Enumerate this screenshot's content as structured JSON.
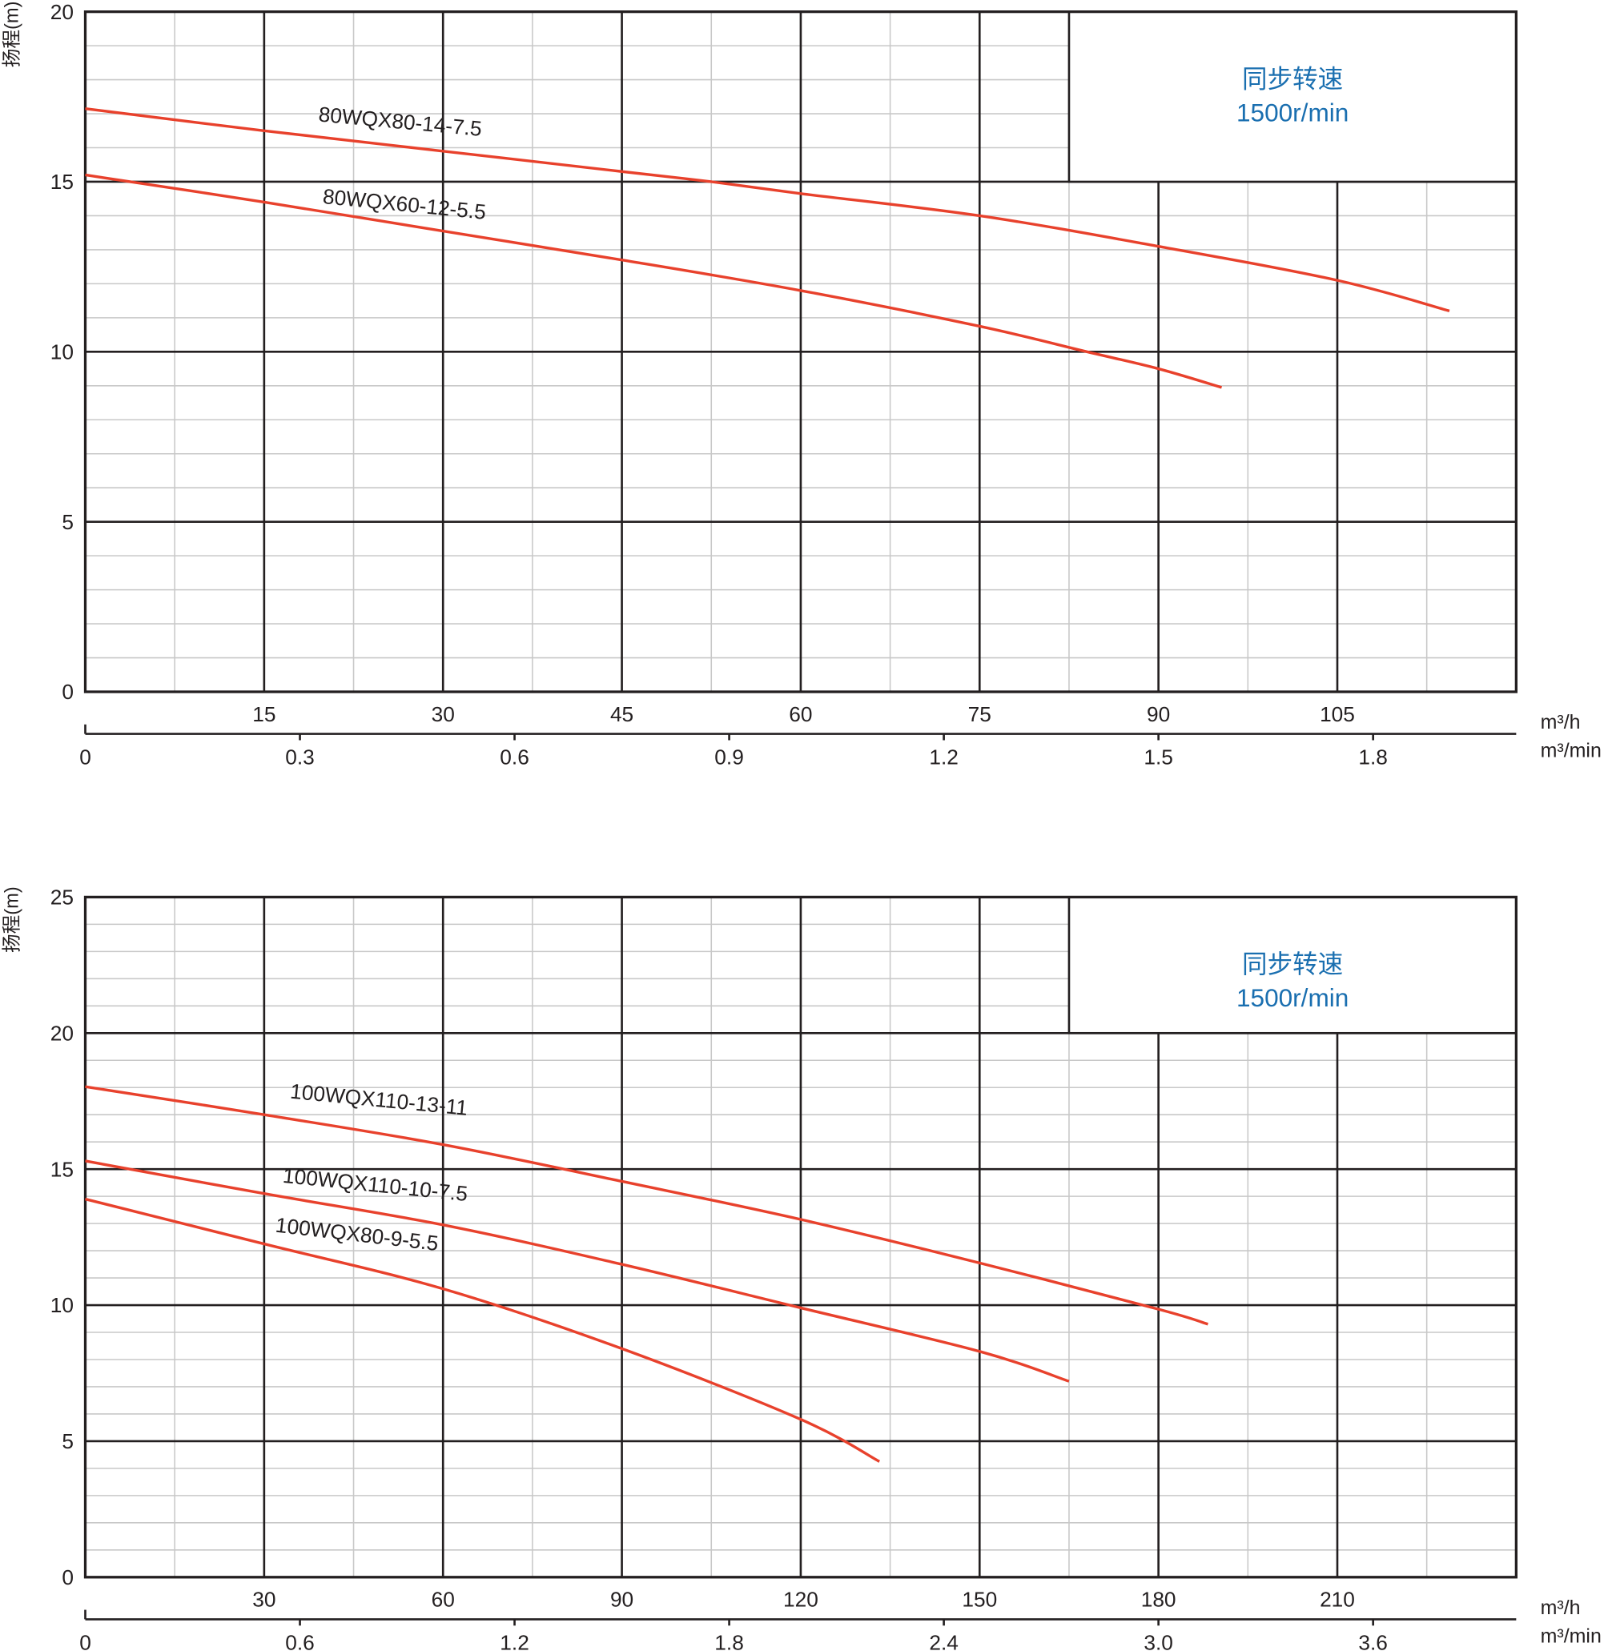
{
  "chart_data": [
    {
      "type": "line",
      "ylabel": "扬程(m)",
      "ylim": [
        0,
        20
      ],
      "yticks": [
        0,
        5,
        10,
        15,
        20
      ],
      "xlim": [
        0,
        120
      ],
      "xticks": [
        15,
        30,
        45,
        60,
        75,
        90,
        105
      ],
      "xlabel": "m³/h",
      "x2label": "m³/min",
      "x2ticks": [
        "0",
        "0.3",
        "0.6",
        "0.9",
        "1.2",
        "1.5",
        "1.8"
      ],
      "x2step_m3h": 18,
      "grid": true,
      "legend_box": {
        "line1": "同步转速",
        "line2": "1500r/min",
        "placement": "top-right"
      },
      "series": [
        {
          "name": "80WQX80-14-7.5",
          "x": [
            0,
            15,
            30,
            45,
            52.5,
            60,
            75,
            90,
            105,
            114.4
          ],
          "y": [
            17.15,
            16.5,
            15.9,
            15.3,
            15.0,
            14.65,
            14.0,
            13.1,
            12.1,
            11.2
          ]
        },
        {
          "name": "80WQX60-12-5.5",
          "x": [
            0,
            15,
            30,
            45,
            60,
            75,
            84,
            90,
            95.3
          ],
          "y": [
            15.2,
            14.4,
            13.55,
            12.7,
            11.8,
            10.75,
            10.0,
            9.5,
            8.95
          ]
        }
      ]
    },
    {
      "type": "line",
      "ylabel": "扬程(m)",
      "ylim": [
        0,
        25
      ],
      "yticks": [
        0,
        5,
        10,
        15,
        20,
        25
      ],
      "xlim": [
        0,
        240
      ],
      "xticks": [
        30,
        60,
        90,
        120,
        150,
        180,
        210
      ],
      "xlabel": "m³/h",
      "x2label": "m³/min",
      "x2ticks": [
        "0",
        "0.6",
        "1.2",
        "1.8",
        "2.4",
        "3.0",
        "3.6"
      ],
      "x2step_m3h": 36,
      "grid": true,
      "legend_box": {
        "line1": "同步转速",
        "line2": "1500r/min",
        "placement": "top-right"
      },
      "series": [
        {
          "name": "100WQX110-13-11",
          "x": [
            0,
            30,
            60,
            90,
            120,
            150,
            180,
            188.3
          ],
          "y": [
            18.03,
            17.0,
            15.9,
            14.55,
            13.15,
            11.55,
            9.85,
            9.3
          ]
        },
        {
          "name": "100WQX110-10-7.5",
          "x": [
            0,
            30,
            60,
            90,
            120,
            150,
            165
          ],
          "y": [
            15.3,
            14.1,
            12.95,
            11.5,
            9.9,
            8.3,
            7.2
          ]
        },
        {
          "name": "100WQX80-9-5.5",
          "x": [
            0,
            30,
            60,
            90,
            120,
            133.2
          ],
          "y": [
            13.9,
            12.25,
            10.6,
            8.4,
            5.8,
            4.25
          ]
        }
      ]
    }
  ],
  "colors": {
    "curve": "#e8412c",
    "legend_text": "#1a6fb0",
    "major_grid": "#231f20",
    "minor_grid": "#c8c8c8"
  }
}
